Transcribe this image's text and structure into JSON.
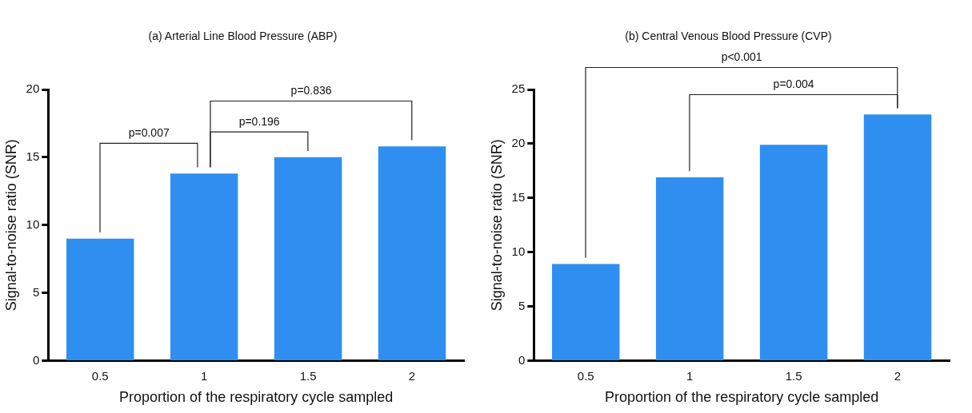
{
  "chart_data": [
    {
      "type": "bar",
      "title": "(a) Arterial Line Blood Pressure (ABP)",
      "xlabel": "Proportion of the respiratory cycle sampled",
      "ylabel": "Signal-to-noise ratio (SNR)",
      "categories": [
        "0.5",
        "1",
        "1.5",
        "2"
      ],
      "values": [
        9.0,
        13.8,
        15.0,
        15.8
      ],
      "color": "#2e8ff0",
      "ylim": [
        0,
        20
      ],
      "yticks": [
        0,
        5,
        10,
        15,
        20
      ],
      "grid": false,
      "legend": false,
      "annotations": [
        "p=0.007",
        "p=0.196",
        "p=0.836"
      ]
    },
    {
      "type": "bar",
      "title": "(b) Central Venous Blood Pressure (CVP)",
      "xlabel": "Proportion of the respiratory cycle sampled",
      "ylabel": "Signal-to-noise ratio (SNR)",
      "categories": [
        "0.5",
        "1",
        "1.5",
        "2"
      ],
      "values": [
        8.9,
        16.9,
        19.9,
        22.7
      ],
      "color": "#2e8ff0",
      "ylim": [
        0,
        25
      ],
      "yticks": [
        0,
        5,
        10,
        15,
        20,
        25
      ],
      "grid": false,
      "legend": false,
      "annotations": [
        "p=0.004",
        "p<0.001"
      ]
    }
  ]
}
